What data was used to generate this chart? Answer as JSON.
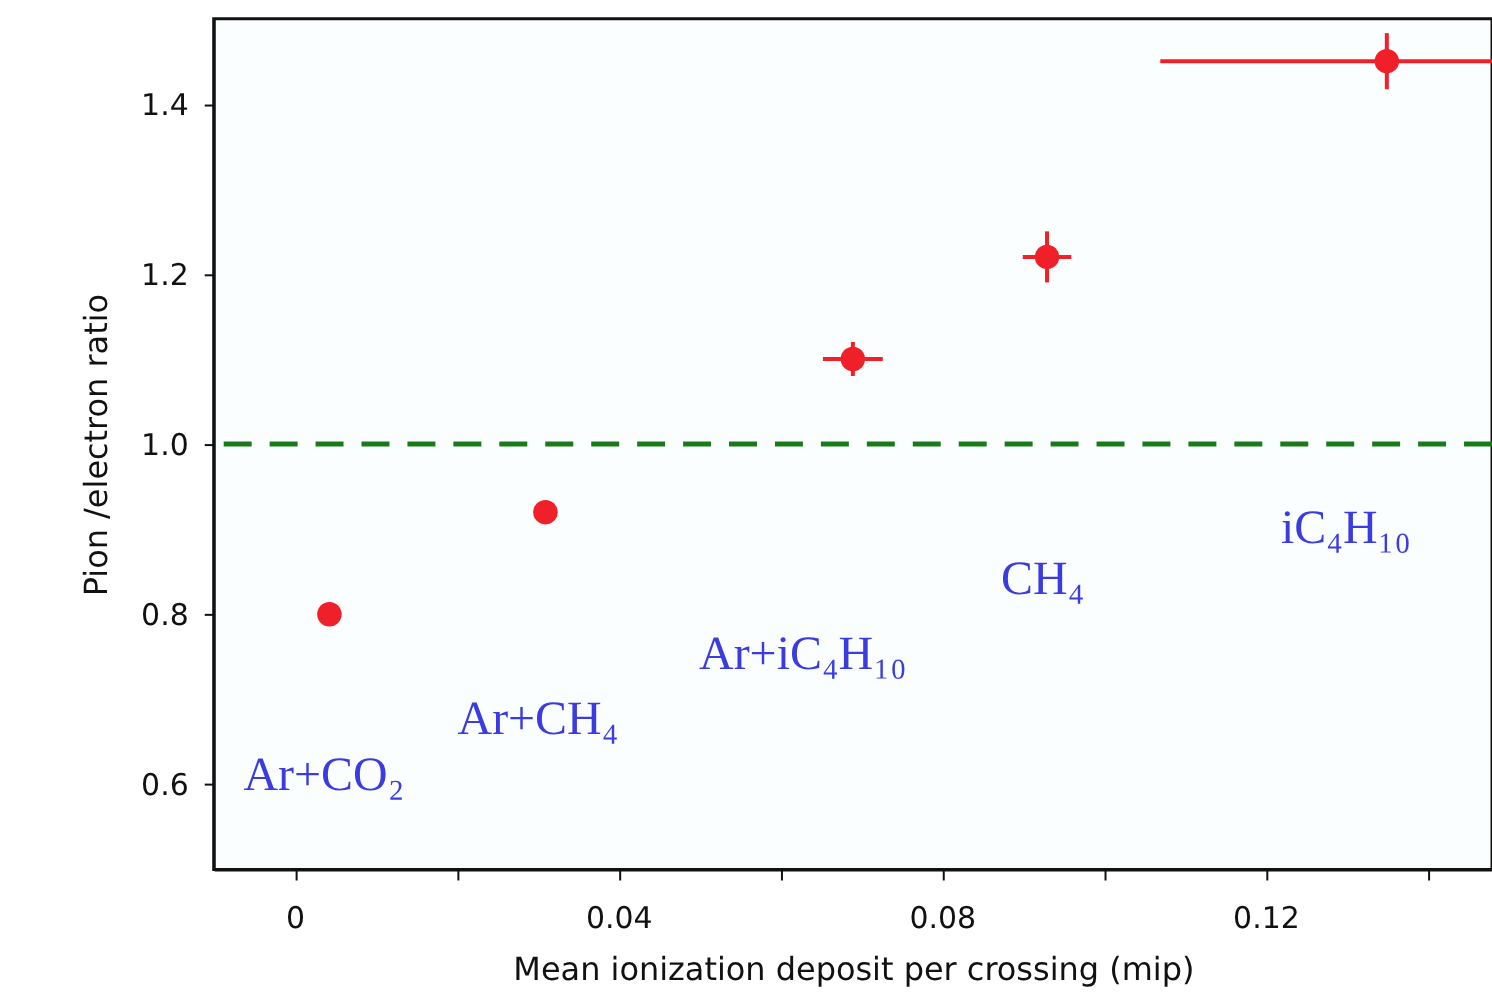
{
  "chart_data": {
    "type": "scatter",
    "xlabel": "Mean ionization deposit per crossing (mip)",
    "ylabel": "Pion /electron ratio",
    "x": [
      0.0043,
      0.031,
      0.069,
      0.093,
      0.135
    ],
    "values": [
      0.8,
      0.92,
      1.1,
      1.22,
      1.45
    ],
    "errors": [
      null,
      null,
      0.02,
      0.03,
      0.033
    ],
    "xerrors": [
      null,
      null,
      0.0037,
      0.003,
      [
        0.107,
        0.148
      ]
    ],
    "color": "#f0202a",
    "marker": "circle",
    "xlim": [
      -0.01,
      0.148
    ],
    "ylim": [
      0.5,
      1.5
    ],
    "xticks": [
      0,
      {
        "value": 0.02,
        "label": null
      },
      0.04,
      {
        "value": 0.06,
        "label": null
      },
      0.08,
      {
        "value": 0.1,
        "label": null
      },
      0.12,
      {
        "value": 0.14,
        "label": null
      }
    ],
    "yticks": [
      0.6,
      0.8,
      {
        "value": 1,
        "label": "1.0"
      },
      1.2,
      1.4
    ],
    "grid": false,
    "ref_lines": [
      {
        "axis": "y",
        "value": 1.0,
        "color": "#1a7a1a",
        "line_style": "dashed"
      }
    ],
    "annotations": [
      "Ar+CO₂",
      "Ar+CH₄",
      "Ar+iC₄H₁₀",
      "CH₄",
      "iC₄H₁₀"
    ]
  }
}
